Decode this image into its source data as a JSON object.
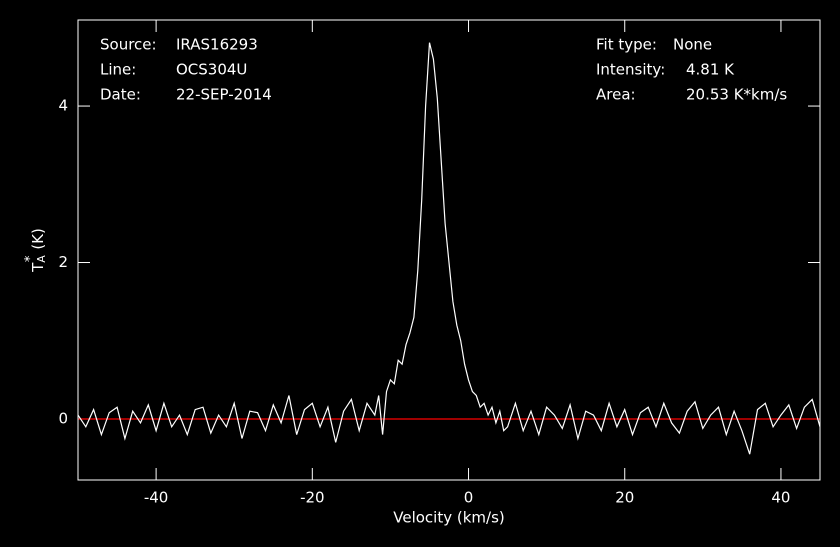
{
  "chart_data": {
    "type": "line",
    "x_label": "Velocity (km/s)",
    "y_label": {
      "symbol": "T",
      "subscript": "A",
      "superscript": "*",
      "unit": "(K)"
    },
    "info_left": [
      {
        "label": "Source:",
        "value": "IRAS16293"
      },
      {
        "label": "Line:",
        "value": "OCS304U"
      },
      {
        "label": "Date:",
        "value": "22-SEP-2014"
      }
    ],
    "info_right": [
      {
        "label": "Fit type:",
        "value": "None"
      },
      {
        "label": "Intensity:",
        "value": "4.81 K"
      },
      {
        "label": "Area:",
        "value": "20.53 K*km/s"
      }
    ],
    "xlim": [
      -50,
      45
    ],
    "ylim": [
      -0.78,
      5.1
    ],
    "xticks": [
      -40,
      -20,
      0,
      20,
      40
    ],
    "yticks": [
      0,
      2,
      4
    ],
    "zero_line_color": "#ff0000",
    "series": [
      {
        "color": "#ffffff",
        "x": [
          -50,
          -49,
          -48,
          -47,
          -46,
          -45,
          -44,
          -43,
          -42,
          -41,
          -40,
          -39,
          -38,
          -37,
          -36,
          -35,
          -34,
          -33,
          -32,
          -31,
          -30,
          -29,
          -28,
          -27,
          -26,
          -25,
          -24,
          -23,
          -22,
          -21,
          -20,
          -19,
          -18,
          -17,
          -16,
          -15,
          -14,
          -13,
          -12,
          -11.5,
          -11,
          -10.5,
          -10,
          -9.5,
          -9,
          -8.5,
          -8,
          -7.5,
          -7,
          -6.5,
          -6,
          -5.5,
          -5,
          -4.5,
          -4,
          -3.5,
          -3,
          -2.5,
          -2,
          -1.5,
          -1,
          -0.5,
          0,
          0.5,
          1,
          1.5,
          2,
          2.5,
          3,
          3.5,
          4,
          4.5,
          5,
          6,
          7,
          8,
          9,
          10,
          11,
          12,
          13,
          14,
          15,
          16,
          17,
          18,
          19,
          20,
          21,
          22,
          23,
          24,
          25,
          26,
          27,
          28,
          29,
          30,
          31,
          32,
          33,
          34,
          35,
          36,
          37,
          38,
          39,
          40,
          41,
          42,
          43,
          44,
          45
        ],
        "values": [
          0.05,
          -0.1,
          0.12,
          -0.2,
          0.08,
          0.15,
          -0.25,
          0.1,
          -0.05,
          0.18,
          -0.15,
          0.2,
          -0.1,
          0.05,
          -0.2,
          0.12,
          0.15,
          -0.18,
          0.05,
          -0.1,
          0.2,
          -0.25,
          0.1,
          0.08,
          -0.15,
          0.18,
          -0.05,
          0.3,
          -0.2,
          0.12,
          0.2,
          -0.1,
          0.15,
          -0.3,
          0.1,
          0.25,
          -0.15,
          0.2,
          0.05,
          0.3,
          -0.2,
          0.35,
          0.5,
          0.45,
          0.75,
          0.7,
          0.95,
          1.1,
          1.3,
          1.9,
          2.8,
          4.0,
          4.81,
          4.6,
          4.1,
          3.3,
          2.5,
          2.0,
          1.5,
          1.2,
          1.0,
          0.7,
          0.5,
          0.35,
          0.3,
          0.15,
          0.2,
          0.05,
          0.15,
          -0.05,
          0.1,
          -0.15,
          -0.1,
          0.2,
          -0.15,
          0.1,
          -0.2,
          0.15,
          0.05,
          -0.12,
          0.18,
          -0.25,
          0.1,
          0.05,
          -0.15,
          0.2,
          -0.1,
          0.12,
          -0.2,
          0.08,
          0.15,
          -0.1,
          0.2,
          -0.05,
          -0.18,
          0.1,
          0.22,
          -0.12,
          0.05,
          0.15,
          -0.2,
          0.1,
          -0.15,
          -0.45,
          0.12,
          0.2,
          -0.1,
          0.05,
          0.18,
          -0.12,
          0.15,
          0.25,
          -0.1
        ]
      }
    ]
  }
}
